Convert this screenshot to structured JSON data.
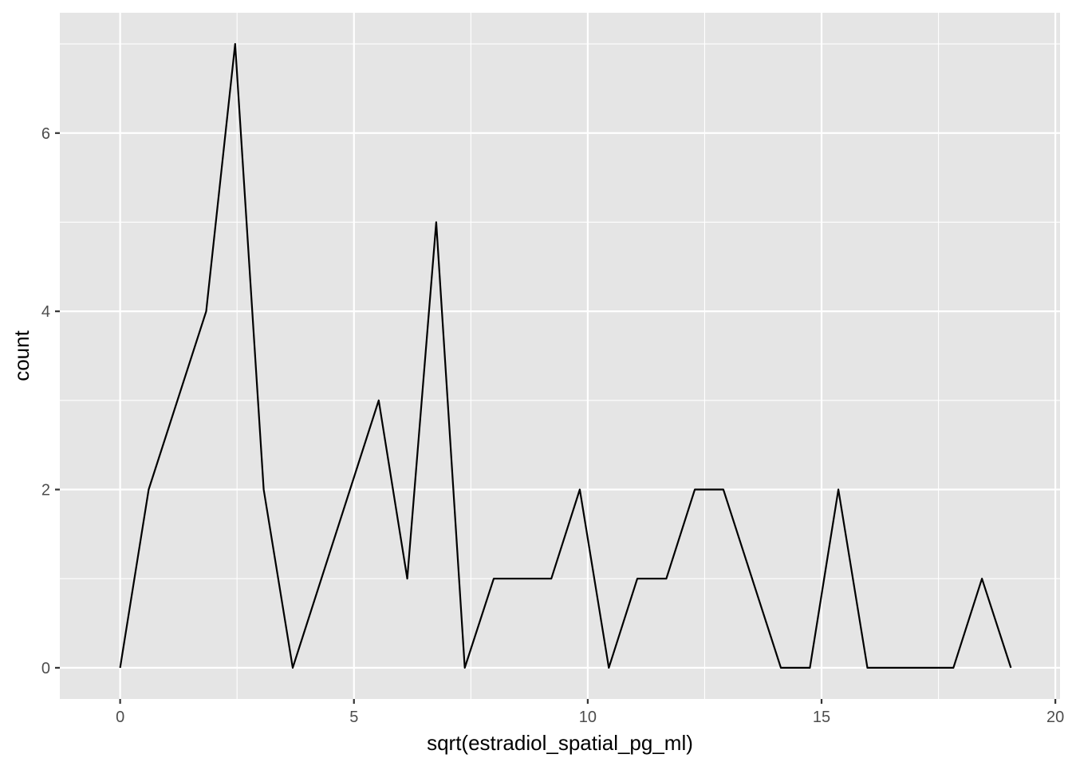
{
  "chart_data": {
    "type": "line",
    "title": "",
    "xlabel": "sqrt(estradiol_spatial_pg_ml)",
    "ylabel": "count",
    "xlim": [
      -1.29,
      20.1
    ],
    "ylim": [
      -0.35,
      7.35
    ],
    "x_ticks": [
      0,
      5,
      10,
      15,
      20
    ],
    "y_ticks": [
      0,
      2,
      4,
      6
    ],
    "grid": true,
    "legend": "none",
    "colors": {
      "panel": "#e5e5e5",
      "grid": "#ffffff",
      "line": "#000000"
    },
    "series": [
      {
        "x": [
          0,
          0.61,
          1.84,
          2.46,
          3.07,
          3.69,
          5.53,
          6.14,
          6.76,
          7.37,
          7.99,
          9.22,
          9.83,
          10.45,
          11.06,
          11.68,
          12.29,
          12.9,
          14.13,
          14.75,
          15.36,
          15.98,
          17.82,
          18.43,
          19.05
        ],
        "values": [
          0,
          2,
          4,
          7,
          2,
          0,
          3,
          1,
          5,
          0,
          1,
          1,
          2,
          0,
          1,
          1,
          2,
          2,
          0,
          0,
          2,
          0,
          0,
          1,
          0
        ]
      }
    ]
  }
}
